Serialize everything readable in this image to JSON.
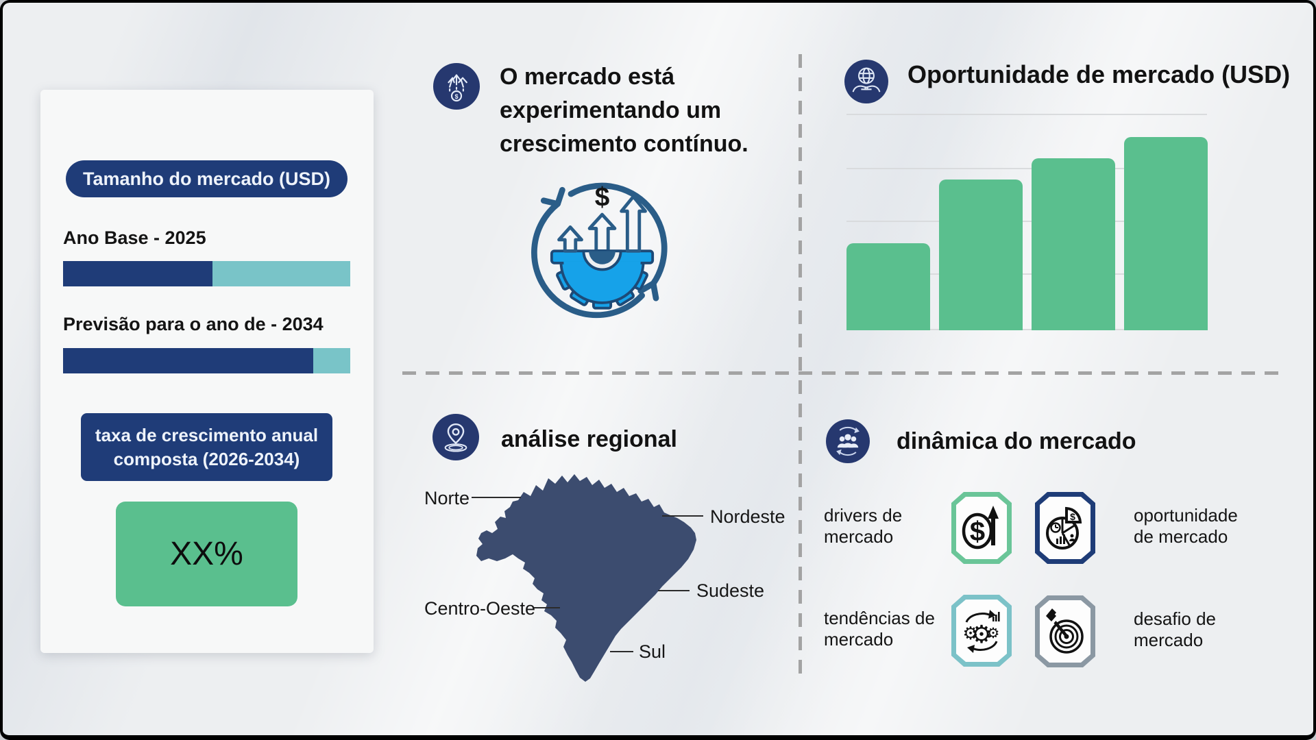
{
  "left_panel": {
    "pill": "Tamanho do mercado (USD)",
    "base_year": {
      "label": "Ano Base - 2025",
      "progress_pct": 52
    },
    "forecast": {
      "label": "Previsão para o ano de - 2034",
      "progress_pct": 87
    },
    "cagr": {
      "label": "taxa de crescimento anual\ncomposta (2026-2034)",
      "value": "XX%"
    }
  },
  "growth": {
    "icon": "money-growth-icon",
    "heading": "O mercado está\nexperimentando um\ncrescimento contínuo."
  },
  "opportunity": {
    "icon": "globe-hands-icon",
    "title": "Oportunidade de mercado (USD)",
    "chart_data": {
      "type": "bar",
      "categories": [
        "",
        "",
        "",
        ""
      ],
      "values": [
        45,
        78,
        89,
        100
      ],
      "title": "Oportunidade de mercado (USD)",
      "xlabel": "",
      "ylabel": "",
      "ylim": [
        0,
        100
      ],
      "grid": true,
      "legend": false,
      "bar_color": "#5abf8e"
    }
  },
  "regional": {
    "icon": "location-pin-icon",
    "title": "análise regional",
    "labels": [
      "Norte",
      "Nordeste",
      "Centro-Oeste",
      "Sudeste",
      "Sul"
    ]
  },
  "dynamics": {
    "icon": "people-sync-icon",
    "title": "dinâmica do mercado",
    "items": [
      {
        "label": "drivers de\nmercado",
        "icon": "dollar-growth-icon"
      },
      {
        "label": "oportunidade\nde mercado",
        "icon": "pie-chart-icon"
      },
      {
        "label": "tendências de\nmercado",
        "icon": "gears-sync-icon"
      },
      {
        "label": "desafio de\nmercado",
        "icon": "dart-target-icon"
      }
    ]
  },
  "glyphs": {
    "dollar": "$",
    "gear": "⚙"
  },
  "colors": {
    "navy": "#1f3c78",
    "icon_circle": "#26386f",
    "teal": "#79c4c8",
    "green": "#5abf8e",
    "map": "#3c4c6f",
    "tile_border_green": "#6ac598",
    "tile_border_navy": "#1e3c77",
    "tile_border_teal": "#7cc2c8",
    "tile_border_gray": "#8b98a3",
    "dash": "#a3a3a3",
    "illustration_blue": "#16a2e9",
    "illustration_steel": "#2a5d88"
  }
}
